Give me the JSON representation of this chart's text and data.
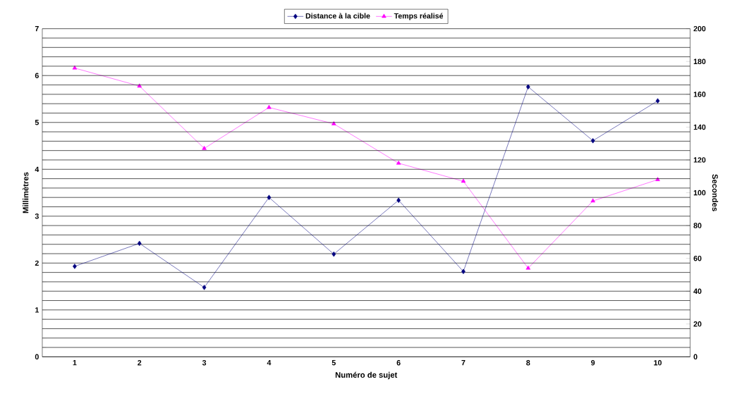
{
  "chart_data": {
    "type": "line",
    "xlabel": "Numéro de sujet",
    "ylabel": "Millimètres",
    "y2label": "Secondes",
    "categories": [
      "1",
      "2",
      "3",
      "4",
      "5",
      "6",
      "7",
      "8",
      "9",
      "10"
    ],
    "series": [
      {
        "name": "Distance à la cible",
        "color": "#000080",
        "marker": "diamond",
        "values": [
          1.93,
          2.42,
          1.48,
          3.4,
          2.19,
          3.34,
          1.82,
          5.76,
          4.61,
          5.46
        ]
      },
      {
        "name": "Temps réalisé",
        "color": "#ff00ff",
        "marker": "triangle",
        "axis": "y2",
        "values": [
          176,
          165,
          127,
          152,
          142,
          118,
          107,
          54,
          95,
          108
        ]
      }
    ],
    "ylim": [
      0,
      7
    ],
    "yticks": [
      0,
      {
        "value": 0.2,
        "label": null
      },
      {
        "value": 0.4,
        "label": null
      },
      {
        "value": 0.6,
        "label": null
      },
      {
        "value": 0.8,
        "label": null
      },
      1,
      {
        "value": 1.2,
        "label": null
      },
      {
        "value": 1.4,
        "label": null
      },
      {
        "value": 1.6,
        "label": null
      },
      {
        "value": 1.8,
        "label": null
      },
      2,
      {
        "value": 2.2,
        "label": null
      },
      {
        "value": 2.4,
        "label": null
      },
      {
        "value": 2.6,
        "label": null
      },
      {
        "value": 2.8,
        "label": null
      },
      3,
      {
        "value": 3.2,
        "label": null
      },
      {
        "value": 3.4,
        "label": null
      },
      {
        "value": 3.6,
        "label": null
      },
      {
        "value": 3.8,
        "label": null
      },
      4,
      {
        "value": 4.2,
        "label": null
      },
      {
        "value": 4.4,
        "label": null
      },
      {
        "value": 4.6,
        "label": null
      },
      {
        "value": 4.8,
        "label": null
      },
      5,
      {
        "value": 5.2,
        "label": null
      },
      {
        "value": 5.4,
        "label": null
      },
      {
        "value": 5.6,
        "label": null
      },
      {
        "value": 5.8,
        "label": null
      },
      6,
      {
        "value": 6.2,
        "label": null
      },
      {
        "value": 6.4,
        "label": null
      },
      {
        "value": 6.6,
        "label": null
      },
      {
        "value": 6.8,
        "label": null
      },
      7
    ],
    "y2lim": [
      0,
      200
    ],
    "y2ticks": [
      0,
      20,
      40,
      60,
      80,
      100,
      120,
      140,
      160,
      180,
      200
    ],
    "grid": "y",
    "legend": "top",
    "line_style": "solid"
  }
}
